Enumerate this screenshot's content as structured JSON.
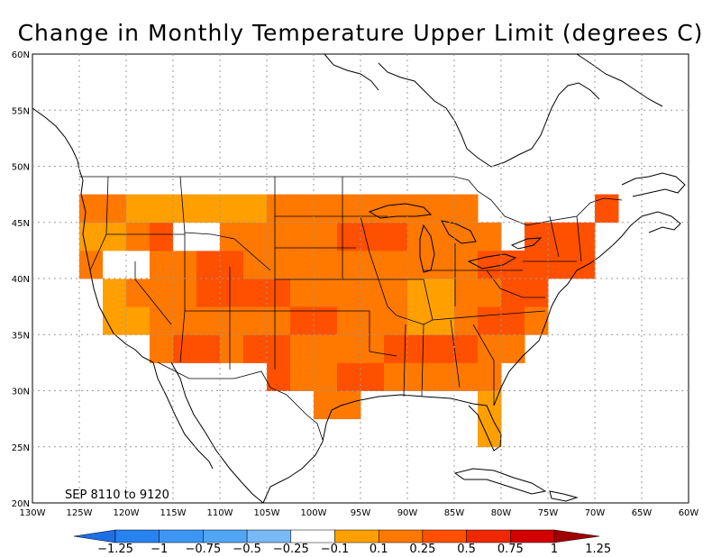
{
  "title": "Change in Monthly Temperature Upper Limit (degrees C)",
  "period_label": "SEP  8110  to  9120",
  "lon_labels": [
    "130W",
    "125W",
    "120W",
    "115W",
    "110W",
    "105W",
    "100W",
    "95W",
    "90W",
    "85W",
    "80W",
    "75W",
    "70W",
    "65W",
    "60W"
  ],
  "lat_labels": [
    "60N",
    "55N",
    "50N",
    "45N",
    "40N",
    "35N",
    "30N",
    "25N",
    "20N"
  ],
  "legend": {
    "labels": [
      "-1.25",
      "-1",
      "-0.75",
      "-0.5",
      "-0.25",
      "-0.1",
      "0.1",
      "0.25",
      "0.5",
      "0.75",
      "1",
      "1.25"
    ],
    "colors": [
      "#1e6ee6",
      "#2882f0",
      "#3c96f5",
      "#50a5f5",
      "#78b9fa",
      "#ffffff",
      "#ffa000",
      "#ff7800",
      "#ff5000",
      "#f02800",
      "#d20000",
      "#a00000"
    ]
  },
  "map": {
    "extent": {
      "lon": [
        -130,
        -60
      ],
      "lat": [
        20,
        60
      ]
    },
    "grid_spacing_deg": 2.5,
    "land_class_color": "#ff7800",
    "anomaly_cells": [
      {
        "lon": -122.5,
        "lat": 43.75,
        "class": "0.1-0.25"
      },
      {
        "lon": -117.5,
        "lat": 46.25,
        "class": "0.1-0.25"
      },
      {
        "lon": -112.5,
        "lat": 46.25,
        "class": "0.1-0.25"
      },
      {
        "lon": -110,
        "lat": 47.5,
        "class": "0.1-0.25"
      },
      {
        "lon": -107.5,
        "lat": 47.5,
        "class": "0.1-0.25"
      },
      {
        "lon": -122.5,
        "lat": 38.75,
        "class": "0.1-0.25"
      },
      {
        "lon": -120,
        "lat": 35,
        "class": "0.1-0.25"
      },
      {
        "lon": -87.5,
        "lat": 37.5,
        "class": "0.1-0.25"
      },
      {
        "lon": -82.5,
        "lat": 27.5,
        "class": "0.1-0.25"
      },
      {
        "lon": -95,
        "lat": 26.25,
        "class": "0.1-0.25"
      },
      {
        "lon": -67.5,
        "lat": 43.75,
        "class": "0.1-0.25"
      },
      {
        "lon": -120,
        "lat": 41.25,
        "class": "-0.1-0.1"
      },
      {
        "lon": -112.5,
        "lat": 43.75,
        "class": "-0.1-0.1"
      },
      {
        "lon": -115,
        "lat": 43.75,
        "class": "0.5-0.75"
      },
      {
        "lon": -110,
        "lat": 40,
        "class": "0.5-0.75"
      },
      {
        "lon": -107.5,
        "lat": 38.75,
        "class": "0.5-0.75"
      },
      {
        "lon": -105,
        "lat": 38.75,
        "class": "0.5-0.75"
      },
      {
        "lon": -105,
        "lat": 32.5,
        "class": "0.5-0.75"
      },
      {
        "lon": -112.5,
        "lat": 33.75,
        "class": "0.5-0.75"
      },
      {
        "lon": -100,
        "lat": 36.25,
        "class": "0.5-0.75"
      },
      {
        "lon": -95,
        "lat": 43.75,
        "class": "0.5-0.75"
      },
      {
        "lon": -92.5,
        "lat": 43.75,
        "class": "0.5-0.75"
      },
      {
        "lon": -95,
        "lat": 31.25,
        "class": "0.5-0.75"
      },
      {
        "lon": -90,
        "lat": 33.75,
        "class": "0.5-0.75"
      },
      {
        "lon": -85,
        "lat": 33.75,
        "class": "0.5-0.75"
      },
      {
        "lon": -80,
        "lat": 36.25,
        "class": "0.5-0.75"
      },
      {
        "lon": -77.5,
        "lat": 38.75,
        "class": "0.5-0.75"
      },
      {
        "lon": -80,
        "lat": 41.25,
        "class": "0.5-0.75"
      },
      {
        "lon": -77.5,
        "lat": 41.25,
        "class": "0.5-0.75"
      },
      {
        "lon": -75,
        "lat": 43.75,
        "class": "0.5-0.75"
      },
      {
        "lon": -72.5,
        "lat": 43.75,
        "class": "0.5-0.75"
      },
      {
        "lon": -70,
        "lat": 46.25,
        "class": "0.5-0.75"
      },
      {
        "lon": -72.5,
        "lat": 41.25,
        "class": "0.5-0.75"
      },
      {
        "lon": -70,
        "lat": 43.75,
        "class": "0.75-1"
      }
    ]
  }
}
